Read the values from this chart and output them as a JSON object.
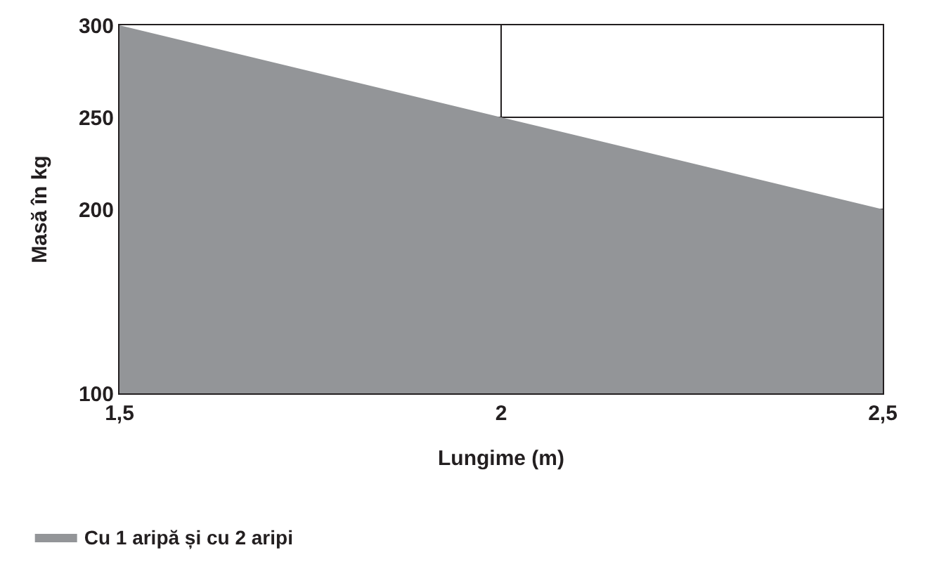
{
  "chart_data": {
    "type": "area",
    "xlabel": "Lungime (m)",
    "ylabel": "Masă în kg",
    "x": [
      1.5,
      2,
      2.5
    ],
    "series": [
      {
        "name": "Cu 1 aripă și cu 2 aripi",
        "color": "#939598",
        "values": [
          300,
          250,
          200
        ]
      }
    ],
    "xlim": [
      1.5,
      2.5
    ],
    "xticks": [
      {
        "value": 1.5,
        "label": "1,5"
      },
      2,
      {
        "value": 2.5,
        "label": "2,5"
      }
    ],
    "ylim": [
      100,
      300
    ],
    "yticks": [
      100,
      200,
      250,
      300
    ],
    "grid": true,
    "legend": "bottom left"
  }
}
